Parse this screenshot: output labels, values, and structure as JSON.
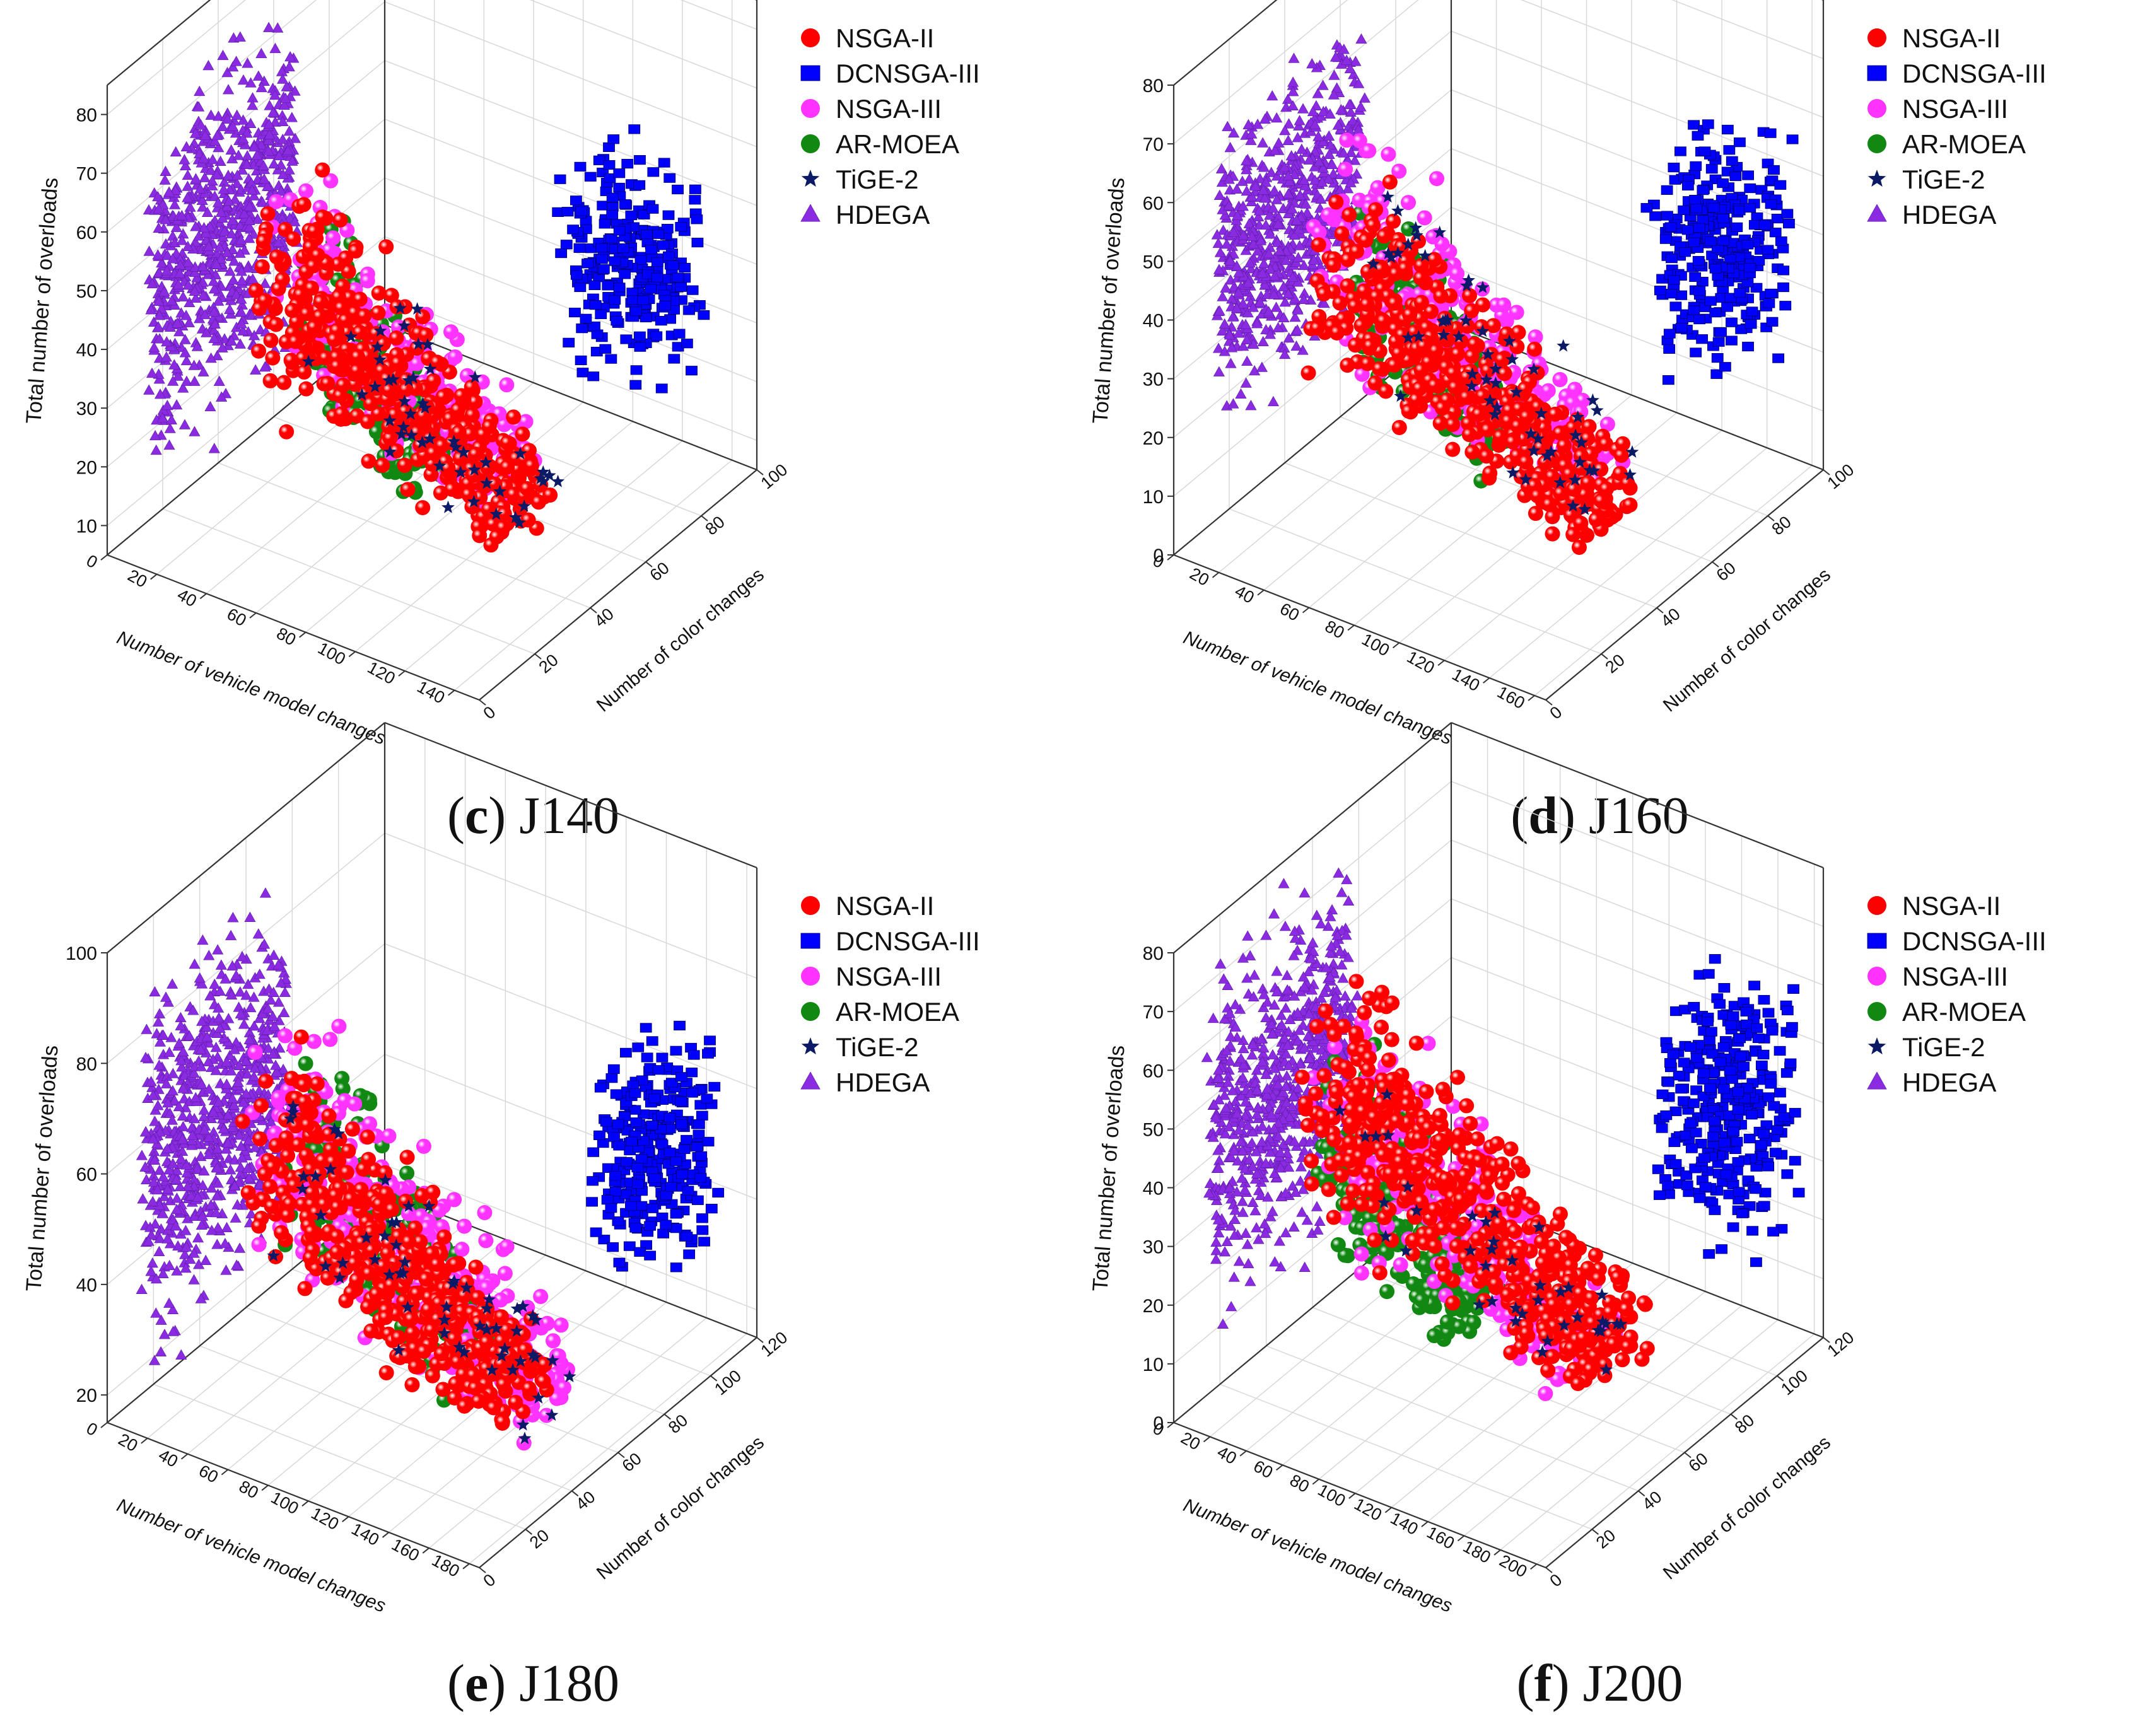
{
  "chart_data": [
    {
      "type": "scatter3d",
      "caption": {
        "letter": "c",
        "label": "J140"
      },
      "xlabel": "Number of vehicle model changes",
      "ylabel": "Number of color changes",
      "zlabel": "Total number of overloads",
      "xticks": [
        0,
        20,
        40,
        60,
        80,
        100,
        120,
        140
      ],
      "yticks": [
        0,
        20,
        40,
        60,
        80,
        100
      ],
      "zticks": [
        10,
        20,
        30,
        40,
        50,
        60,
        70,
        80
      ],
      "xlim": [
        0,
        150
      ],
      "ylim": [
        0,
        100
      ],
      "zlim": [
        5,
        85
      ],
      "legend": [
        "NSGA-II",
        "DCNSGA-III",
        "NSGA-III",
        "AR-MOEA",
        "TiGE-2",
        "HDEGA"
      ],
      "legend_position": "top-right",
      "series": [
        {
          "name": "HDEGA",
          "x": [
            5,
            10
          ],
          "y": [
            10,
            60
          ],
          "z": [
            10,
            85
          ],
          "n": 700
        },
        {
          "name": "NSGA-II",
          "x": [
            30,
            130
          ],
          "y": [
            25,
            45
          ],
          "z": [
            12,
            68
          ],
          "n": 420
        },
        {
          "name": "NSGA-III",
          "x": [
            30,
            120
          ],
          "y": [
            28,
            50
          ],
          "z": [
            15,
            70
          ],
          "n": 180
        },
        {
          "name": "AR-MOEA",
          "x": [
            40,
            90
          ],
          "y": [
            30,
            48
          ],
          "z": [
            12,
            60
          ],
          "n": 200
        },
        {
          "name": "TiGE-2",
          "x": [
            40,
            130
          ],
          "y": [
            30,
            50
          ],
          "z": [
            10,
            60
          ],
          "n": 50
        },
        {
          "name": "DCNSGA-III",
          "x": [
            100,
            140
          ],
          "y": [
            70,
            92
          ],
          "z": [
            20,
            65
          ],
          "n": 260
        }
      ]
    },
    {
      "type": "scatter3d",
      "caption": {
        "letter": "d",
        "label": "J160"
      },
      "xlabel": "Number of vehicle model changes",
      "ylabel": "Number of color changes",
      "zlabel": "Total number of overloads",
      "xticks": [
        0,
        20,
        40,
        60,
        80,
        100,
        120,
        140,
        160
      ],
      "yticks": [
        0,
        20,
        40,
        60,
        80,
        100
      ],
      "zticks": [
        0,
        10,
        20,
        30,
        40,
        50,
        60,
        70,
        80
      ],
      "xlim": [
        0,
        165
      ],
      "ylim": [
        0,
        100
      ],
      "zlim": [
        0,
        80
      ],
      "legend": [
        "NSGA-II",
        "DCNSGA-III",
        "NSGA-III",
        "AR-MOEA",
        "TiGE-2",
        "HDEGA"
      ],
      "legend_position": "top-right",
      "series": [
        {
          "name": "HDEGA",
          "x": [
            5,
            12
          ],
          "y": [
            10,
            60
          ],
          "z": [
            12,
            76
          ],
          "n": 650
        },
        {
          "name": "NSGA-II",
          "x": [
            25,
            150
          ],
          "y": [
            25,
            48
          ],
          "z": [
            8,
            62
          ],
          "n": 450
        },
        {
          "name": "NSGA-III",
          "x": [
            25,
            140
          ],
          "y": [
            28,
            50
          ],
          "z": [
            10,
            72
          ],
          "n": 260
        },
        {
          "name": "AR-MOEA",
          "x": [
            40,
            100
          ],
          "y": [
            30,
            48
          ],
          "z": [
            12,
            58
          ],
          "n": 220
        },
        {
          "name": "TiGE-2",
          "x": [
            40,
            150
          ],
          "y": [
            30,
            50
          ],
          "z": [
            8,
            66
          ],
          "n": 60
        },
        {
          "name": "DCNSGA-III",
          "x": [
            120,
            160
          ],
          "y": [
            70,
            95
          ],
          "z": [
            16,
            66
          ],
          "n": 300
        }
      ]
    },
    {
      "type": "scatter3d",
      "caption": {
        "letter": "e",
        "label": "J180"
      },
      "xlabel": "Number of vehicle model changes",
      "ylabel": "Number of color changes",
      "zlabel": "Total number of overloads",
      "xticks": [
        0,
        20,
        40,
        60,
        80,
        100,
        120,
        140,
        160,
        180
      ],
      "yticks": [
        0,
        20,
        40,
        60,
        80,
        100,
        120
      ],
      "zticks": [
        20,
        40,
        60,
        80,
        100
      ],
      "xlim": [
        0,
        185
      ],
      "ylim": [
        0,
        120
      ],
      "zlim": [
        15,
        100
      ],
      "legend": [
        "NSGA-II",
        "DCNSGA-III",
        "NSGA-III",
        "AR-MOEA",
        "TiGE-2",
        "HDEGA"
      ],
      "legend_position": "top-right",
      "series": [
        {
          "name": "HDEGA",
          "x": [
            5,
            12
          ],
          "y": [
            10,
            70
          ],
          "z": [
            18,
            98
          ],
          "n": 700
        },
        {
          "name": "NSGA-II",
          "x": [
            30,
            160
          ],
          "y": [
            30,
            55
          ],
          "z": [
            18,
            82
          ],
          "n": 450
        },
        {
          "name": "NSGA-III",
          "x": [
            30,
            170
          ],
          "y": [
            30,
            60
          ],
          "z": [
            18,
            90
          ],
          "n": 320
        },
        {
          "name": "AR-MOEA",
          "x": [
            40,
            130
          ],
          "y": [
            35,
            58
          ],
          "z": [
            20,
            88
          ],
          "n": 200
        },
        {
          "name": "TiGE-2",
          "x": [
            40,
            170
          ],
          "y": [
            35,
            60
          ],
          "z": [
            18,
            80
          ],
          "n": 60
        },
        {
          "name": "DCNSGA-III",
          "x": [
            140,
            180
          ],
          "y": [
            85,
            110
          ],
          "z": [
            25,
            80
          ],
          "n": 280
        }
      ]
    },
    {
      "type": "scatter3d",
      "caption": {
        "letter": "f",
        "label": "J200"
      },
      "xlabel": "Number of vehicle model changes",
      "ylabel": "Number of color changes",
      "zlabel": "Total number of overloads",
      "xticks": [
        0,
        20,
        40,
        60,
        80,
        100,
        120,
        140,
        160,
        180,
        200
      ],
      "yticks": [
        0,
        20,
        40,
        60,
        80,
        100,
        120
      ],
      "zticks": [
        0,
        10,
        20,
        30,
        40,
        50,
        60,
        70,
        80
      ],
      "xlim": [
        0,
        205
      ],
      "ylim": [
        0,
        120
      ],
      "zlim": [
        0,
        80
      ],
      "legend": [
        "NSGA-II",
        "DCNSGA-III",
        "NSGA-III",
        "AR-MOEA",
        "TiGE-2",
        "HDEGA"
      ],
      "legend_position": "top-right",
      "series": [
        {
          "name": "HDEGA",
          "x": [
            5,
            12
          ],
          "y": [
            10,
            70
          ],
          "z": [
            6,
            82
          ],
          "n": 700
        },
        {
          "name": "NSGA-II",
          "x": [
            30,
            190
          ],
          "y": [
            30,
            60
          ],
          "z": [
            10,
            74
          ],
          "n": 500
        },
        {
          "name": "NSGA-III",
          "x": [
            30,
            180
          ],
          "y": [
            30,
            60
          ],
          "z": [
            10,
            70
          ],
          "n": 250
        },
        {
          "name": "AR-MOEA",
          "x": [
            35,
            110
          ],
          "y": [
            32,
            58
          ],
          "z": [
            10,
            62
          ],
          "n": 300
        },
        {
          "name": "TiGE-2",
          "x": [
            40,
            180
          ],
          "y": [
            35,
            60
          ],
          "z": [
            10,
            62
          ],
          "n": 40
        },
        {
          "name": "DCNSGA-III",
          "x": [
            150,
            200
          ],
          "y": [
            90,
            115
          ],
          "z": [
            14,
            70
          ],
          "n": 320
        }
      ]
    }
  ],
  "series_colors": {
    "NSGA-II": "#ff0000",
    "DCNSGA-III": "#0000ff",
    "NSGA-III": "#ff33ff",
    "AR-MOEA": "#118811",
    "TiGE-2": "#0b1a66",
    "HDEGA": "#8a2be2"
  },
  "series_markers": {
    "NSGA-II": "circle-marker",
    "DCNSGA-III": "square-marker",
    "NSGA-III": "circle-marker",
    "AR-MOEA": "circle-marker",
    "TiGE-2": "star-marker",
    "HDEGA": "triangle-marker"
  }
}
